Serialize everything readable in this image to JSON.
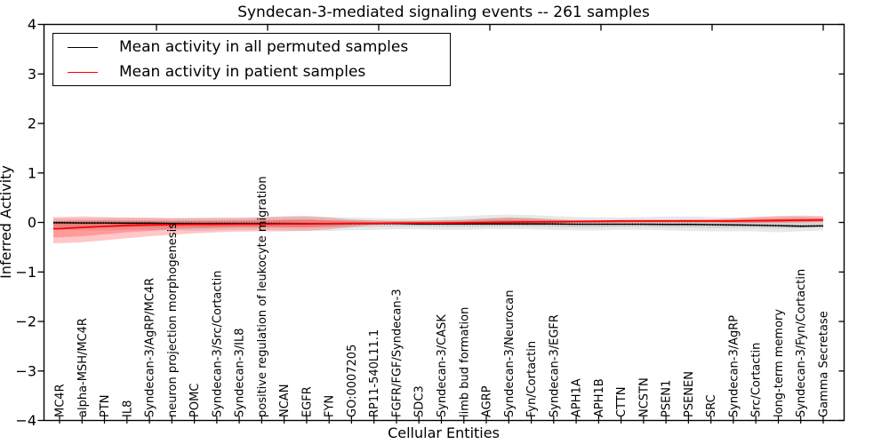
{
  "chart_data": {
    "type": "line",
    "title": "Syndecan-3-mediated signaling events -- 261 samples",
    "xlabel": "Cellular Entities",
    "ylabel": "Inferred Activity",
    "ylim": [
      -4,
      4
    ],
    "yticks": [
      4,
      3,
      2,
      1,
      0,
      -1,
      -2,
      -3,
      -4
    ],
    "grid": false,
    "legend": {
      "position": "upper left",
      "items": [
        {
          "label": "Mean activity in all permuted samples",
          "color": "#000000"
        },
        {
          "label": "Mean activity in patient samples",
          "color": "#ff0000"
        }
      ]
    },
    "categories": [
      "MC4R",
      "alpha-MSH/MC4R",
      "PTN",
      "IL8",
      "Syndecan-3/AgRP/MC4R",
      "neuron projection morphogenesis",
      "POMC",
      "Syndecan-3/Src/Cortactin",
      "Syndecan-3/IL8",
      "positive regulation of leukocyte migration",
      "NCAN",
      "EGFR",
      "FYN",
      "GO:0007205",
      "RP11-540L11.1",
      "FGFR/FGF/Syndecan-3",
      "SDC3",
      "Syndecan-3/CASK",
      "limb bud formation",
      "AGRP",
      "Syndecan-3/Neurocan",
      "Fyn/Cortactin",
      "Syndecan-3/EGFR",
      "APH1A",
      "APH1B",
      "CTTN",
      "NCSTN",
      "PSEN1",
      "PSENEN",
      "SRC",
      "Syndecan-3/AgRP",
      "Src/Cortactin",
      "long-term memory",
      "Syndecan-3/Fyn/Cortactin",
      "Gamma Secretase"
    ],
    "series": [
      {
        "name": "Mean activity in all permuted samples",
        "color": "#000000",
        "style": "solid-with-dot-markers",
        "band_color": "rgba(0,0,0,0.09)",
        "values": [
          -0.005,
          -0.01,
          -0.01,
          -0.015,
          -0.015,
          -0.02,
          -0.02,
          -0.02,
          -0.02,
          -0.02,
          -0.02,
          -0.025,
          -0.025,
          -0.025,
          -0.025,
          -0.025,
          -0.03,
          -0.03,
          -0.03,
          -0.03,
          -0.03,
          -0.03,
          -0.03,
          -0.035,
          -0.035,
          -0.035,
          -0.035,
          -0.04,
          -0.04,
          -0.045,
          -0.05,
          -0.055,
          -0.065,
          -0.075,
          -0.07
        ],
        "band": {
          "upper": [
            0.08,
            0.08,
            0.09,
            0.09,
            0.08,
            0.08,
            0.09,
            0.1,
            0.1,
            0.11,
            0.12,
            0.12,
            0.11,
            0.1,
            0.09,
            0.08,
            0.09,
            0.11,
            0.13,
            0.15,
            0.16,
            0.15,
            0.13,
            0.11,
            0.1,
            0.1,
            0.11,
            0.12,
            0.12,
            0.11,
            0.1,
            0.11,
            0.12,
            0.12,
            0.11
          ],
          "lower": [
            -0.15,
            -0.16,
            -0.16,
            -0.15,
            -0.15,
            -0.16,
            -0.17,
            -0.16,
            -0.15,
            -0.15,
            -0.16,
            -0.17,
            -0.17,
            -0.16,
            -0.15,
            -0.14,
            -0.14,
            -0.15,
            -0.15,
            -0.14,
            -0.14,
            -0.14,
            -0.15,
            -0.16,
            -0.16,
            -0.15,
            -0.15,
            -0.16,
            -0.17,
            -0.18,
            -0.18,
            -0.18,
            -0.2,
            -0.18,
            -0.16
          ]
        },
        "band_inner": {
          "upper": [
            0.03,
            0.03,
            0.04,
            0.04,
            0.04,
            0.03,
            0.04,
            0.04,
            0.05,
            0.05,
            0.06,
            0.06,
            0.05,
            0.05,
            0.04,
            0.04,
            0.04,
            0.05,
            0.06,
            0.08,
            0.09,
            0.08,
            0.07,
            0.05,
            0.05,
            0.05,
            0.05,
            0.06,
            0.06,
            0.05,
            0.05,
            0.05,
            0.06,
            0.06,
            0.05
          ],
          "lower": [
            -0.09,
            -0.1,
            -0.1,
            -0.1,
            -0.09,
            -0.1,
            -0.1,
            -0.1,
            -0.09,
            -0.09,
            -0.1,
            -0.1,
            -0.1,
            -0.1,
            -0.09,
            -0.08,
            -0.08,
            -0.09,
            -0.09,
            -0.09,
            -0.08,
            -0.08,
            -0.09,
            -0.1,
            -0.1,
            -0.09,
            -0.09,
            -0.1,
            -0.1,
            -0.11,
            -0.11,
            -0.11,
            -0.12,
            -0.11,
            -0.1
          ]
        }
      },
      {
        "name": "Mean activity in patient samples",
        "color": "#ff0000",
        "style": "solid",
        "band_color": "rgba(255,0,0,0.22)",
        "values": [
          -0.125,
          -0.1,
          -0.08,
          -0.06,
          -0.05,
          -0.045,
          -0.04,
          -0.04,
          -0.035,
          -0.035,
          -0.03,
          -0.03,
          -0.025,
          -0.02,
          -0.02,
          -0.015,
          -0.01,
          -0.01,
          -0.005,
          0.0,
          0.005,
          0.01,
          0.015,
          0.02,
          0.025,
          0.03,
          0.03,
          0.03,
          0.03,
          0.03,
          0.03,
          0.035,
          0.04,
          0.045,
          0.05
        ],
        "band": {
          "upper": [
            0.11,
            0.12,
            0.11,
            0.1,
            0.1,
            0.09,
            0.09,
            0.09,
            0.09,
            0.1,
            0.12,
            0.13,
            0.1,
            0.06,
            0.04,
            0.03,
            0.03,
            0.04,
            0.05,
            0.08,
            0.1,
            0.09,
            0.06,
            0.04,
            0.04,
            0.04,
            0.04,
            0.04,
            0.05,
            0.06,
            0.08,
            0.11,
            0.13,
            0.14,
            0.13
          ],
          "lower": [
            -0.42,
            -0.4,
            -0.36,
            -0.32,
            -0.28,
            -0.25,
            -0.22,
            -0.2,
            -0.185,
            -0.18,
            -0.18,
            -0.17,
            -0.14,
            -0.09,
            -0.05,
            -0.03,
            -0.02,
            -0.02,
            -0.03,
            -0.04,
            -0.03,
            -0.02,
            -0.01,
            -0.01,
            -0.01,
            -0.01,
            0.0,
            0.0,
            0.0,
            0.0,
            -0.01,
            -0.01,
            -0.01,
            0.0,
            0.01
          ]
        },
        "band_inner": {
          "upper": [
            0.03,
            0.04,
            0.04,
            0.03,
            0.03,
            0.03,
            0.03,
            0.03,
            0.03,
            0.04,
            0.05,
            0.06,
            0.04,
            0.02,
            0.01,
            0.01,
            0.01,
            0.02,
            0.02,
            0.04,
            0.05,
            0.04,
            0.03,
            0.03,
            0.03,
            0.03,
            0.03,
            0.03,
            0.04,
            0.04,
            0.05,
            0.07,
            0.08,
            0.09,
            0.08
          ],
          "lower": [
            -0.3,
            -0.28,
            -0.24,
            -0.2,
            -0.17,
            -0.14,
            -0.12,
            -0.11,
            -0.1,
            -0.1,
            -0.1,
            -0.1,
            -0.08,
            -0.05,
            -0.04,
            -0.03,
            -0.03,
            -0.03,
            -0.03,
            -0.03,
            -0.02,
            -0.02,
            -0.01,
            -0.01,
            -0.01,
            0.0,
            0.0,
            0.0,
            0.0,
            0.0,
            0.0,
            0.0,
            0.01,
            0.01,
            0.02
          ]
        }
      }
    ]
  }
}
